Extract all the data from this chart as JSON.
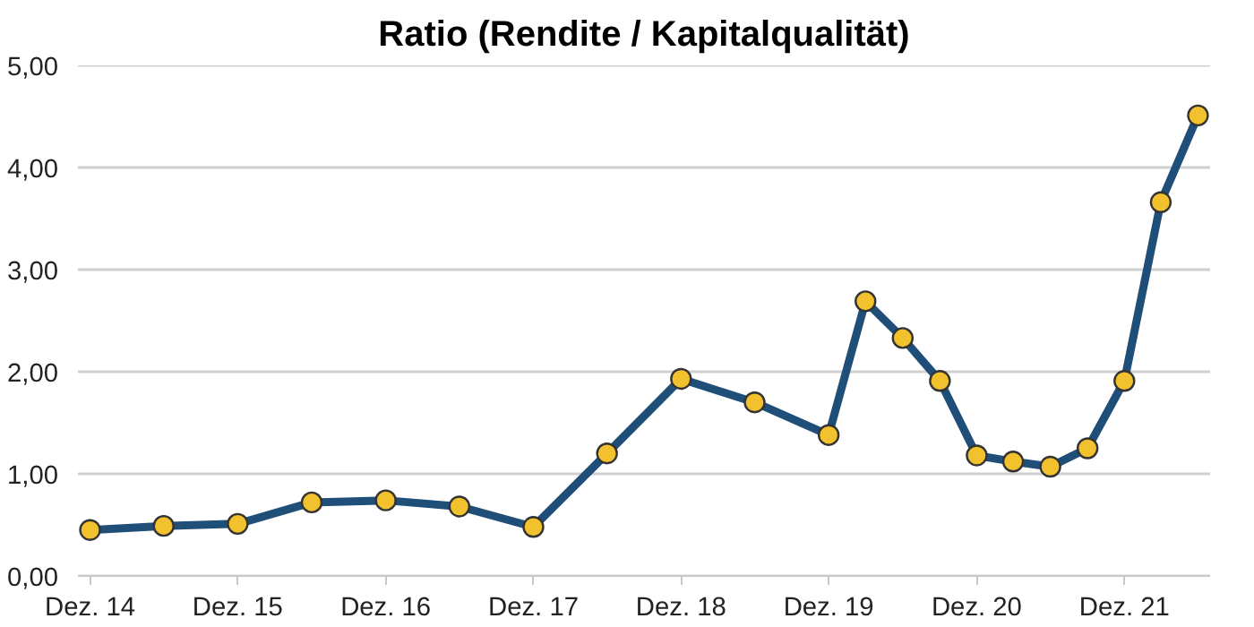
{
  "chart_data": {
    "type": "line",
    "title": "Ratio (Rendite / Kapitalqualität)",
    "x": [
      "2014-12",
      "2015-06",
      "2015-12",
      "2016-06",
      "2016-12",
      "2017-06",
      "2017-12",
      "2018-06",
      "2018-12",
      "2019-06",
      "2019-12",
      "2020-03",
      "2020-06",
      "2020-09",
      "2020-12",
      "2021-03",
      "2021-06",
      "2021-09",
      "2021-12",
      "2022-03",
      "2022-06"
    ],
    "series": [
      {
        "color": "#1f4e79",
        "colors": [
          "#f2c12e",
          "#f2c12e",
          "#f2c12e",
          "#f2c12e",
          "#f2c12e",
          "#f2c12e",
          "#f2c12e",
          "#f2c12e",
          "#f2c12e",
          "#f2c12e",
          "#f2c12e",
          "#f2c12e",
          "#f2c12e",
          "#f2c12e",
          "#f2c12e",
          "#f2c12e",
          "#f2c12e",
          "#f2c12e",
          "#f2c12e",
          "#f2c12e",
          "#f2c12e"
        ],
        "values": [
          0.45,
          0.49,
          0.51,
          0.72,
          0.74,
          0.68,
          0.48,
          1.2,
          1.93,
          1.7,
          1.38,
          2.69,
          2.33,
          1.91,
          1.18,
          1.12,
          1.07,
          1.25,
          1.91,
          3.66,
          4.51
        ]
      }
    ],
    "xlim": [
      "2014-11",
      "2022-07"
    ],
    "xticks": [
      {
        "value": "2014-12",
        "label": "Dez. 14"
      },
      {
        "value": "2015-12",
        "label": "Dez. 15"
      },
      {
        "value": "2016-12",
        "label": "Dez. 16"
      },
      {
        "value": "2017-12",
        "label": "Dez. 17"
      },
      {
        "value": "2018-12",
        "label": "Dez. 18"
      },
      {
        "value": "2019-12",
        "label": "Dez. 19"
      },
      {
        "value": "2020-12",
        "label": "Dez. 20"
      },
      {
        "value": "2021-12",
        "label": "Dez. 21"
      }
    ],
    "ylim": [
      0,
      5
    ],
    "yticks": [
      {
        "value": 0,
        "label": "0,00"
      },
      {
        "value": 1,
        "label": "1,00"
      },
      {
        "value": 2,
        "label": "2,00"
      },
      {
        "value": 3,
        "label": "3,00"
      },
      {
        "value": 4,
        "label": "4,00"
      },
      {
        "value": 5,
        "label": "5,00"
      }
    ],
    "grid": "y",
    "marker": "circle",
    "line_style": "solid"
  }
}
